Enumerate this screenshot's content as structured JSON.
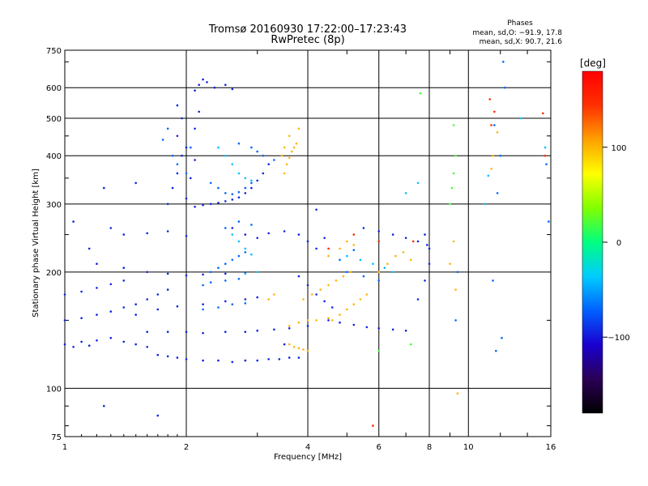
{
  "chart_data": {
    "type": "scatter",
    "title": "Tromsø 20160930 17:22:00–17:23:43",
    "subtitle": "RwPretec (8p)",
    "xlabel": "Frequency [MHz]",
    "ylabel": "Stationary phase Virtual Height [km]",
    "x_scale": "log",
    "y_scale": "log",
    "xlim": [
      1,
      16
    ],
    "ylim": [
      75,
      750
    ],
    "x_ticks": [
      1,
      2,
      4,
      6,
      8,
      10,
      16
    ],
    "x_tick_labels": [
      "1",
      "2",
      "4",
      "6",
      "8",
      "10",
      "16"
    ],
    "y_ticks": [
      75,
      100,
      200,
      300,
      400,
      500,
      600,
      750
    ],
    "y_tick_labels": [
      "75",
      "100",
      "200",
      "300",
      "400",
      "500",
      "600",
      "750"
    ],
    "grid": true,
    "stats": {
      "heading": "Phases",
      "line_o": "mean, sd,O: −91.9, 17.8",
      "line_x": "mean, sd,X:  90.7, 21.6"
    },
    "colorbar": {
      "label": "[deg]",
      "range": [
        -180,
        180
      ],
      "ticks": [
        100,
        0,
        -100
      ],
      "tick_labels": [
        "100",
        "0",
        "−100"
      ],
      "colors": [
        "#000000",
        "#2b0055",
        "#1a00d0",
        "#0060ff",
        "#00ccff",
        "#00ff80",
        "#80ff00",
        "#ffff00",
        "#ffa000",
        "#ff3000",
        "#ff0000"
      ]
    },
    "series": [
      {
        "phase": -95,
        "points": [
          [
            1.0,
            130
          ],
          [
            1.05,
            128
          ],
          [
            1.1,
            132
          ],
          [
            1.15,
            129
          ],
          [
            1.2,
            133
          ],
          [
            1.3,
            135
          ],
          [
            1.4,
            132
          ],
          [
            1.5,
            130
          ],
          [
            1.6,
            128
          ],
          [
            1.0,
            150
          ],
          [
            1.1,
            152
          ],
          [
            1.2,
            155
          ],
          [
            1.3,
            158
          ],
          [
            1.4,
            162
          ],
          [
            1.5,
            165
          ],
          [
            1.6,
            170
          ],
          [
            1.7,
            175
          ],
          [
            1.8,
            180
          ],
          [
            1.0,
            175
          ],
          [
            1.1,
            178
          ],
          [
            1.2,
            182
          ],
          [
            1.3,
            186
          ],
          [
            1.4,
            190
          ],
          [
            1.7,
            122
          ],
          [
            1.8,
            121
          ],
          [
            1.9,
            120
          ],
          [
            2.0,
            119
          ],
          [
            2.2,
            118
          ],
          [
            2.4,
            118
          ],
          [
            2.6,
            117
          ],
          [
            2.8,
            118
          ],
          [
            3.0,
            118
          ],
          [
            3.2,
            119
          ],
          [
            3.4,
            119
          ],
          [
            3.6,
            120
          ],
          [
            3.8,
            120
          ],
          [
            1.6,
            140
          ],
          [
            1.8,
            140
          ],
          [
            2.0,
            140
          ],
          [
            2.2,
            139
          ],
          [
            2.5,
            140
          ],
          [
            2.8,
            140
          ],
          [
            3.0,
            141
          ],
          [
            3.3,
            142
          ],
          [
            3.6,
            143
          ],
          [
            4.0,
            145
          ],
          [
            1.5,
            155
          ],
          [
            1.7,
            160
          ],
          [
            1.9,
            163
          ],
          [
            2.2,
            165
          ],
          [
            2.5,
            168
          ],
          [
            2.8,
            170
          ],
          [
            3.0,
            172
          ],
          [
            1.2,
            210
          ],
          [
            1.4,
            205
          ],
          [
            1.6,
            200
          ],
          [
            1.8,
            198
          ],
          [
            2.0,
            196
          ],
          [
            2.2,
            197
          ],
          [
            2.5,
            198
          ],
          [
            2.8,
            199
          ],
          [
            1.4,
            250
          ],
          [
            1.6,
            252
          ],
          [
            1.8,
            255
          ],
          [
            2.0,
            248
          ],
          [
            1.8,
            300
          ],
          [
            1.85,
            330
          ],
          [
            1.9,
            360
          ],
          [
            1.95,
            400
          ],
          [
            1.9,
            450
          ],
          [
            1.95,
            500
          ],
          [
            1.9,
            540
          ],
          [
            2.0,
            310
          ],
          [
            2.05,
            350
          ],
          [
            2.1,
            390
          ],
          [
            2.0,
            420
          ],
          [
            2.1,
            470
          ],
          [
            2.15,
            520
          ],
          [
            2.1,
            295
          ],
          [
            2.2,
            298
          ],
          [
            2.3,
            300
          ],
          [
            2.4,
            302
          ],
          [
            2.5,
            305
          ],
          [
            2.6,
            308
          ],
          [
            2.7,
            312
          ],
          [
            2.8,
            320
          ],
          [
            2.9,
            330
          ],
          [
            3.0,
            345
          ],
          [
            3.1,
            360
          ],
          [
            3.2,
            380
          ],
          [
            2.1,
            590
          ],
          [
            2.15,
            610
          ],
          [
            2.2,
            630
          ],
          [
            2.25,
            620
          ],
          [
            2.35,
            600
          ],
          [
            2.5,
            610
          ],
          [
            2.6,
            595
          ],
          [
            1.3,
            260
          ],
          [
            1.15,
            230
          ],
          [
            1.05,
            270
          ],
          [
            1.25,
            330
          ],
          [
            1.5,
            340
          ],
          [
            2.6,
            260
          ],
          [
            2.8,
            250
          ],
          [
            3.0,
            245
          ],
          [
            3.2,
            252
          ],
          [
            3.5,
            255
          ],
          [
            3.8,
            250
          ],
          [
            4.0,
            240
          ],
          [
            4.2,
            230
          ],
          [
            4.4,
            245
          ],
          [
            4.5,
            150
          ],
          [
            4.8,
            148
          ],
          [
            5.2,
            146
          ],
          [
            5.6,
            144
          ],
          [
            6.0,
            143
          ],
          [
            6.5,
            142
          ],
          [
            7.0,
            141
          ],
          [
            3.8,
            195
          ],
          [
            4.0,
            185
          ],
          [
            4.2,
            175
          ],
          [
            4.4,
            168
          ],
          [
            4.6,
            162
          ],
          [
            5.5,
            260
          ],
          [
            6.0,
            255
          ],
          [
            6.5,
            250
          ],
          [
            7.0,
            245
          ],
          [
            7.5,
            240
          ],
          [
            7.8,
            250
          ],
          [
            8.0,
            230
          ],
          [
            7.5,
            170
          ],
          [
            7.8,
            190
          ],
          [
            8.0,
            210
          ],
          [
            7.9,
            235
          ],
          [
            1.25,
            90
          ],
          [
            1.7,
            85
          ],
          [
            3.5,
            130
          ],
          [
            4.2,
            290
          ]
        ]
      },
      {
        "phase": -70,
        "points": [
          [
            1.75,
            440
          ],
          [
            1.8,
            470
          ],
          [
            1.85,
            400
          ],
          [
            1.9,
            380
          ],
          [
            2.0,
            360
          ],
          [
            2.05,
            420
          ],
          [
            2.3,
            340
          ],
          [
            2.4,
            330
          ],
          [
            2.5,
            320
          ],
          [
            2.6,
            318
          ],
          [
            2.7,
            322
          ],
          [
            2.8,
            330
          ],
          [
            2.9,
            340
          ],
          [
            2.3,
            200
          ],
          [
            2.4,
            205
          ],
          [
            2.5,
            210
          ],
          [
            2.6,
            215
          ],
          [
            2.7,
            220
          ],
          [
            2.8,
            225
          ],
          [
            2.2,
            185
          ],
          [
            2.3,
            188
          ],
          [
            2.5,
            190
          ],
          [
            2.7,
            192
          ],
          [
            2.2,
            160
          ],
          [
            2.4,
            162
          ],
          [
            2.6,
            165
          ],
          [
            2.8,
            166
          ],
          [
            2.7,
            430
          ],
          [
            2.9,
            420
          ],
          [
            3.0,
            410
          ],
          [
            3.1,
            400
          ],
          [
            3.3,
            390
          ],
          [
            2.5,
            260
          ],
          [
            2.7,
            270
          ],
          [
            2.9,
            265
          ],
          [
            5.0,
            200
          ],
          [
            5.5,
            195
          ],
          [
            6.0,
            190
          ],
          [
            4.8,
            215
          ],
          [
            5.2,
            228
          ],
          [
            9.3,
            150
          ],
          [
            9.4,
            200
          ],
          [
            11.5,
            190
          ],
          [
            11.8,
            320
          ],
          [
            11.6,
            480
          ],
          [
            12.0,
            400
          ],
          [
            12.2,
            700
          ],
          [
            12.3,
            600
          ],
          [
            12.1,
            135
          ],
          [
            11.7,
            125
          ],
          [
            15.6,
            380
          ],
          [
            15.8,
            270
          ]
        ]
      },
      {
        "phase": -40,
        "points": [
          [
            2.4,
            420
          ],
          [
            2.5,
            400
          ],
          [
            2.6,
            380
          ],
          [
            2.7,
            360
          ],
          [
            2.8,
            350
          ],
          [
            2.9,
            345
          ],
          [
            2.6,
            250
          ],
          [
            2.7,
            240
          ],
          [
            2.8,
            230
          ],
          [
            2.9,
            222
          ],
          [
            2.8,
            198
          ],
          [
            3.0,
            200
          ],
          [
            5.0,
            220
          ],
          [
            5.4,
            215
          ],
          [
            5.8,
            210
          ],
          [
            6.2,
            205
          ],
          [
            7.0,
            320
          ],
          [
            7.5,
            340
          ],
          [
            11.0,
            300
          ],
          [
            11.2,
            355
          ],
          [
            6.5,
            200
          ],
          [
            13.5,
            500
          ],
          [
            15.5,
            420
          ]
        ]
      },
      {
        "phase": 20,
        "points": [
          [
            9.0,
            300
          ],
          [
            9.1,
            330
          ],
          [
            9.2,
            360
          ],
          [
            9.3,
            400
          ],
          [
            7.6,
            580
          ],
          [
            9.2,
            480
          ],
          [
            6.0,
            125
          ],
          [
            7.2,
            130
          ]
        ]
      },
      {
        "phase": 100,
        "points": [
          [
            3.5,
            360
          ],
          [
            3.55,
            380
          ],
          [
            3.6,
            395
          ],
          [
            3.65,
            410
          ],
          [
            3.7,
            420
          ],
          [
            3.75,
            430
          ],
          [
            3.6,
            450
          ],
          [
            3.5,
            420
          ],
          [
            3.45,
            400
          ],
          [
            3.8,
            470
          ],
          [
            3.6,
            130
          ],
          [
            3.7,
            128
          ],
          [
            3.8,
            127
          ],
          [
            3.9,
            126
          ],
          [
            4.0,
            125
          ],
          [
            3.6,
            145
          ],
          [
            3.8,
            148
          ],
          [
            4.0,
            150
          ],
          [
            4.2,
            150
          ],
          [
            4.5,
            152
          ],
          [
            3.9,
            170
          ],
          [
            4.1,
            175
          ],
          [
            4.3,
            180
          ],
          [
            4.5,
            185
          ],
          [
            4.7,
            190
          ],
          [
            4.9,
            195
          ],
          [
            5.1,
            200
          ],
          [
            4.5,
            220
          ],
          [
            4.8,
            230
          ],
          [
            5.0,
            240
          ],
          [
            5.2,
            235
          ],
          [
            4.6,
            150
          ],
          [
            4.8,
            155
          ],
          [
            5.0,
            160
          ],
          [
            5.2,
            165
          ],
          [
            5.4,
            170
          ],
          [
            5.6,
            175
          ],
          [
            6.0,
            200
          ],
          [
            6.3,
            210
          ],
          [
            6.6,
            220
          ],
          [
            6.9,
            225
          ],
          [
            7.2,
            215
          ],
          [
            3.2,
            170
          ],
          [
            3.3,
            175
          ],
          [
            9.0,
            210
          ],
          [
            9.2,
            240
          ],
          [
            9.3,
            180
          ],
          [
            9.4,
            97
          ],
          [
            11.4,
            370
          ],
          [
            11.5,
            400
          ],
          [
            11.8,
            460
          ]
        ]
      },
      {
        "phase": 150,
        "points": [
          [
            11.3,
            560
          ],
          [
            11.4,
            480
          ],
          [
            11.6,
            520
          ],
          [
            4.5,
            230
          ],
          [
            5.2,
            250
          ],
          [
            6.0,
            240
          ],
          [
            7.3,
            240
          ],
          [
            5.8,
            80
          ],
          [
            15.3,
            515
          ],
          [
            15.5,
            400
          ]
        ]
      }
    ]
  }
}
